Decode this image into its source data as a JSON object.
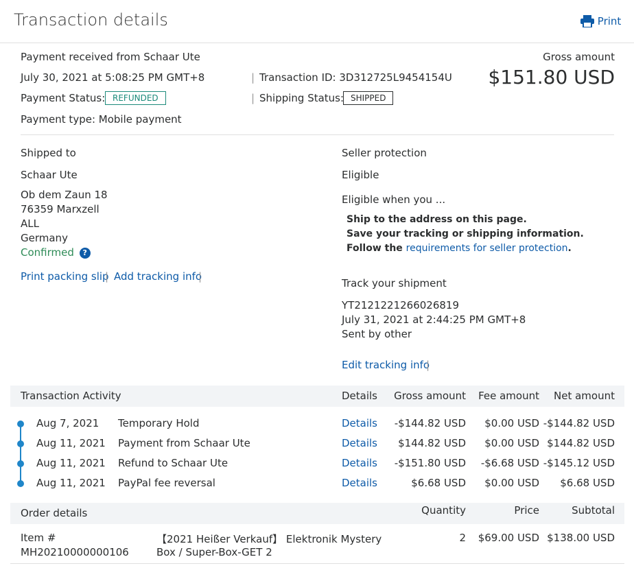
{
  "header": {
    "title": "Transaction details",
    "print_label": "Print"
  },
  "summary": {
    "received_from": "Payment received from Schaar Ute",
    "date": "July 30, 2021 at 5:08:25 PM GMT+8",
    "transaction_id": "Transaction ID: 3D312725L9454154U",
    "payment_status_label": "Payment Status:",
    "payment_status": "REFUNDED",
    "shipping_status_label": "Shipping Status:",
    "shipping_status": "SHIPPED",
    "payment_type": "Payment type: Mobile payment",
    "gross_label": "Gross amount",
    "gross_amount": "$151.80 USD"
  },
  "shipping": {
    "heading": "Shipped to",
    "name": "Schaar Ute",
    "address": [
      "Ob dem Zaun 18",
      "76359 Marxzell",
      "ALL",
      "Germany"
    ],
    "confirmed": "Confirmed",
    "print_slip": "Print packing slip",
    "add_tracking": "Add tracking info"
  },
  "seller_protection": {
    "heading": "Seller protection",
    "status": "Eligible",
    "eligible_when": "Eligible when you ...",
    "req1": "Ship to the address on this page.",
    "req2": "Save your tracking or shipping information.",
    "req3_prefix": "Follow the ",
    "req3_link": "requirements for seller protection",
    "req3_suffix": "."
  },
  "tracking": {
    "heading": "Track your shipment",
    "number": "YT2121221266026819",
    "date": "July 31, 2021 at 2:44:25 PM GMT+8",
    "sent_by": "Sent by other",
    "edit": "Edit tracking info"
  },
  "activity": {
    "headers": {
      "title": "Transaction Activity",
      "details": "Details",
      "gross": "Gross amount",
      "fee": "Fee amount",
      "net": "Net amount"
    },
    "rows": [
      {
        "date": "Aug 7, 2021",
        "desc": "Temporary Hold",
        "details": "Details",
        "gross": "-$144.82 USD",
        "fee": "$0.00 USD",
        "net": "-$144.82 USD"
      },
      {
        "date": "Aug 11, 2021",
        "desc": "Payment from Schaar Ute",
        "details": "Details",
        "gross": "$144.82 USD",
        "fee": "$0.00 USD",
        "net": "$144.82 USD"
      },
      {
        "date": "Aug 11, 2021",
        "desc": "Refund to Schaar Ute",
        "details": "Details",
        "gross": "-$151.80 USD",
        "fee": "-$6.68 USD",
        "net": "-$145.12 USD"
      },
      {
        "date": "Aug 11, 2021",
        "desc": "PayPal fee reversal",
        "details": "Details",
        "gross": "$6.68 USD",
        "fee": "$0.00 USD",
        "net": "$6.68 USD"
      }
    ]
  },
  "order": {
    "headers": {
      "title": "Order details",
      "quantity": "Quantity",
      "price": "Price",
      "subtotal": "Subtotal"
    },
    "item_label": "Item #",
    "item_number": "MH20210000000106",
    "item_name_1": "【2021 Heißer Verkauf】 Elektronik Mystery",
    "item_name_2": "Box / Super-Box-GET 2",
    "quantity": "2",
    "price": "$69.00 USD",
    "subtotal": "$138.00 USD"
  },
  "colors": {
    "link": "#0e5ba8",
    "refunded": "#1b8a7a",
    "confirmed": "#2e8b57",
    "dot": "#1f86c9",
    "band": "#f2f4f6"
  }
}
